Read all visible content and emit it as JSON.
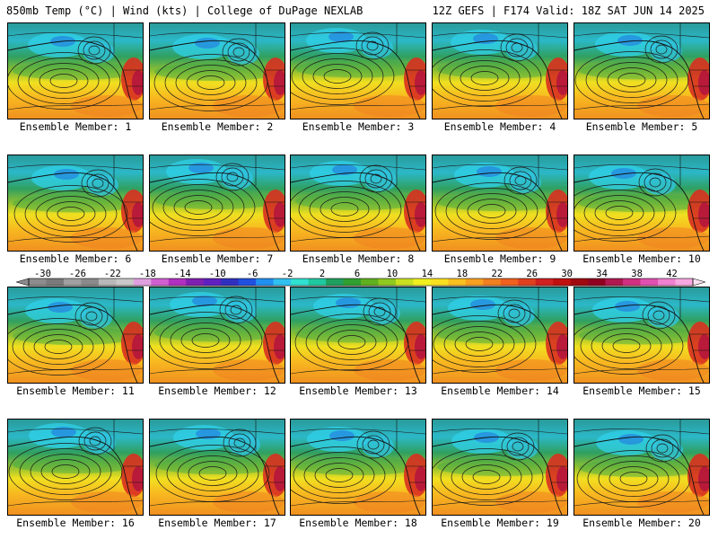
{
  "header": {
    "left": "850mb Temp (°C) | Wind (kts) | College of DuPage NEXLAB",
    "right": "12Z GEFS | F174 Valid: 18Z SAT JUN 14 2025"
  },
  "panels": [
    {
      "label": "Ensemble Member: 1"
    },
    {
      "label": "Ensemble Member: 2"
    },
    {
      "label": "Ensemble Member: 3"
    },
    {
      "label": "Ensemble Member: 4"
    },
    {
      "label": "Ensemble Member: 5"
    },
    {
      "label": "Ensemble Member: 6"
    },
    {
      "label": "Ensemble Member: 7"
    },
    {
      "label": "Ensemble Member: 8"
    },
    {
      "label": "Ensemble Member: 9"
    },
    {
      "label": "Ensemble Member: 10"
    },
    {
      "label": "Ensemble Member: 11"
    },
    {
      "label": "Ensemble Member: 12"
    },
    {
      "label": "Ensemble Member: 13"
    },
    {
      "label": "Ensemble Member: 14"
    },
    {
      "label": "Ensemble Member: 15"
    },
    {
      "label": "Ensemble Member: 16"
    },
    {
      "label": "Ensemble Member: 17"
    },
    {
      "label": "Ensemble Member: 18"
    },
    {
      "label": "Ensemble Member: 19"
    },
    {
      "label": "Ensemble Member: 20"
    }
  ],
  "colorbar": {
    "ticks": [
      "-30",
      "-26",
      "-22",
      "-18",
      "-14",
      "-10",
      "-6",
      "-2",
      "2",
      "6",
      "10",
      "14",
      "18",
      "22",
      "26",
      "30",
      "34",
      "38",
      "42"
    ],
    "colors": [
      "#8c8c8c",
      "#7a7a7a",
      "#a0a0a0",
      "#8a8a8a",
      "#b8b8b8",
      "#c8c8c8",
      "#e0a0e0",
      "#d060d0",
      "#b030c0",
      "#8020b0",
      "#6020c0",
      "#3030c0",
      "#2050e0",
      "#2090f0",
      "#30c0f0",
      "#30e0d0",
      "#20c8a0",
      "#20a060",
      "#30a030",
      "#60b020",
      "#90c820",
      "#c8e020",
      "#f0f020",
      "#f8e020",
      "#f8c020",
      "#f8a020",
      "#f08020",
      "#f06020",
      "#e04020",
      "#d02020",
      "#c01010",
      "#a00810",
      "#900020",
      "#b01850",
      "#d03080",
      "#e050b0",
      "#f080d0",
      "#f8a8e0"
    ]
  }
}
